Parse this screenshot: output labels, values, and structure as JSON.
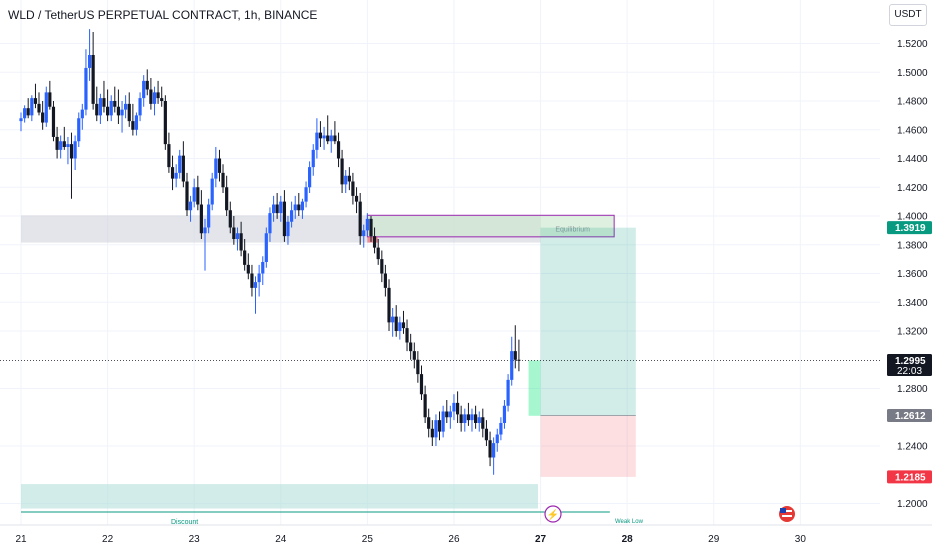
{
  "header": {
    "title": "WLD / TetherUS PERPETUAL CONTRACT, 1h, BINANCE",
    "currency": "USDT"
  },
  "chart_data": {
    "type": "candlestick",
    "title": "WLD / TetherUS PERPETUAL CONTRACT, 1h, BINANCE",
    "y_ticks": [
      "1.5200",
      "1.5000",
      "1.4800",
      "1.4600",
      "1.4400",
      "1.4200",
      "1.4000",
      "1.3800",
      "1.3600",
      "1.3400",
      "1.3200",
      "1.2800",
      "1.2400",
      "1.2000"
    ],
    "x_ticks": [
      "21",
      "22",
      "23",
      "24",
      "25",
      "26",
      "27",
      "28",
      "29",
      "30"
    ],
    "ylim": [
      1.193,
      1.534
    ],
    "xlim": [
      21.0,
      30.92
    ],
    "colors": {
      "up": "#2962ff",
      "down": "#131722"
    },
    "price_labels": [
      {
        "value": 1.3919,
        "text": "1.3919",
        "color": "#089981"
      },
      {
        "value": 1.2995,
        "text": "1.2995",
        "sub": "22:03",
        "color": "#131722"
      },
      {
        "value": 1.2612,
        "text": "1.2612",
        "color": "#787b86"
      },
      {
        "value": 1.2185,
        "text": "1.2185",
        "color": "#f23645"
      }
    ],
    "current_price": 1.2995,
    "zones": [
      {
        "name": "supply-zone",
        "x": [
          21.0,
          27.0
        ],
        "y": [
          1.3815,
          1.4005
        ],
        "color": "#d1d4dc",
        "opacity": 0.6
      },
      {
        "name": "equilibrium-box",
        "x": [
          25.0,
          27.85
        ],
        "y": [
          1.3855,
          1.4005
        ],
        "color": "#c8e6c9",
        "opacity": 0.6,
        "border": "#9c27b0",
        "label": "Equilibrium"
      },
      {
        "name": "small-red-zone",
        "x": [
          25.0,
          25.12
        ],
        "y": [
          1.3815,
          1.3855
        ],
        "color": "#f7525f",
        "opacity": 0.6
      },
      {
        "name": "discount-zone",
        "x": [
          21.0,
          26.97
        ],
        "y": [
          1.1965,
          1.2135
        ],
        "color": "#b2dfdb",
        "opacity": 0.6,
        "label": "Discount"
      }
    ],
    "position": {
      "x": [
        27.0,
        28.1
      ],
      "entry": 1.2612,
      "target": 1.3919,
      "stop": 1.2185,
      "profit_color": "#089981",
      "loss_color": "#f23645"
    },
    "weak_low": {
      "x": [
        21.0,
        27.8
      ],
      "y": 1.1975,
      "label": "Weak Low"
    },
    "candles": [
      [
        21.0,
        1.466,
        1.472,
        1.459,
        1.468
      ],
      [
        21.042,
        1.468,
        1.477,
        1.465,
        1.475
      ],
      [
        21.083,
        1.475,
        1.482,
        1.468,
        1.47
      ],
      [
        21.125,
        1.47,
        1.484,
        1.466,
        1.482
      ],
      [
        21.167,
        1.482,
        1.492,
        1.475,
        1.478
      ],
      [
        21.208,
        1.478,
        1.486,
        1.47,
        1.472
      ],
      [
        21.25,
        1.472,
        1.48,
        1.46,
        1.465
      ],
      [
        21.292,
        1.465,
        1.49,
        1.462,
        1.486
      ],
      [
        21.333,
        1.486,
        1.494,
        1.474,
        1.476
      ],
      [
        21.375,
        1.476,
        1.48,
        1.452,
        1.455
      ],
      [
        21.417,
        1.455,
        1.462,
        1.44,
        1.446
      ],
      [
        21.458,
        1.446,
        1.456,
        1.44,
        1.452
      ],
      [
        21.5,
        1.452,
        1.462,
        1.446,
        1.448
      ],
      [
        21.542,
        1.448,
        1.455,
        1.436,
        1.45
      ],
      [
        21.583,
        1.45,
        1.458,
        1.412,
        1.44
      ],
      [
        21.625,
        1.44,
        1.456,
        1.432,
        1.452
      ],
      [
        21.667,
        1.452,
        1.472,
        1.448,
        1.468
      ],
      [
        21.708,
        1.468,
        1.478,
        1.46,
        1.474
      ],
      [
        21.75,
        1.474,
        1.516,
        1.47,
        1.503
      ],
      [
        21.792,
        1.503,
        1.53,
        1.494,
        1.512
      ],
      [
        21.833,
        1.512,
        1.528,
        1.474,
        1.478
      ],
      [
        21.875,
        1.478,
        1.49,
        1.466,
        1.47
      ],
      [
        21.917,
        1.47,
        1.485,
        1.464,
        1.482
      ],
      [
        21.958,
        1.482,
        1.494,
        1.472,
        1.476
      ],
      [
        22.0,
        1.476,
        1.488,
        1.466,
        1.47
      ],
      [
        22.042,
        1.47,
        1.484,
        1.466,
        1.48
      ],
      [
        22.083,
        1.48,
        1.49,
        1.472,
        1.476
      ],
      [
        22.125,
        1.476,
        1.488,
        1.464,
        1.47
      ],
      [
        22.167,
        1.47,
        1.48,
        1.458,
        1.474
      ],
      [
        22.208,
        1.474,
        1.484,
        1.468,
        1.478
      ],
      [
        22.25,
        1.478,
        1.486,
        1.462,
        1.466
      ],
      [
        22.292,
        1.466,
        1.478,
        1.456,
        1.46
      ],
      [
        22.333,
        1.46,
        1.472,
        1.456,
        1.47
      ],
      [
        22.375,
        1.47,
        1.486,
        1.466,
        1.482
      ],
      [
        22.417,
        1.482,
        1.498,
        1.476,
        1.494
      ],
      [
        22.458,
        1.494,
        1.502,
        1.484,
        1.488
      ],
      [
        22.5,
        1.488,
        1.496,
        1.474,
        1.478
      ],
      [
        22.542,
        1.478,
        1.49,
        1.47,
        1.486
      ],
      [
        22.583,
        1.486,
        1.494,
        1.478,
        1.482
      ],
      [
        22.625,
        1.482,
        1.49,
        1.476,
        1.48
      ],
      [
        22.667,
        1.48,
        1.484,
        1.446,
        1.45
      ],
      [
        22.708,
        1.45,
        1.458,
        1.43,
        1.434
      ],
      [
        22.75,
        1.434,
        1.442,
        1.418,
        1.426
      ],
      [
        22.792,
        1.426,
        1.436,
        1.42,
        1.43
      ],
      [
        22.833,
        1.43,
        1.446,
        1.426,
        1.442
      ],
      [
        22.875,
        1.442,
        1.452,
        1.42,
        1.424
      ],
      [
        22.917,
        1.424,
        1.43,
        1.4,
        1.404
      ],
      [
        22.958,
        1.404,
        1.414,
        1.396,
        1.41
      ],
      [
        23.0,
        1.41,
        1.426,
        1.406,
        1.42
      ],
      [
        23.042,
        1.42,
        1.428,
        1.404,
        1.408
      ],
      [
        23.083,
        1.408,
        1.418,
        1.384,
        1.388
      ],
      [
        23.125,
        1.388,
        1.398,
        1.362,
        1.392
      ],
      [
        23.167,
        1.392,
        1.412,
        1.388,
        1.408
      ],
      [
        23.208,
        1.408,
        1.43,
        1.404,
        1.426
      ],
      [
        23.25,
        1.426,
        1.448,
        1.42,
        1.44
      ],
      [
        23.292,
        1.44,
        1.446,
        1.424,
        1.43
      ],
      [
        23.333,
        1.43,
        1.436,
        1.416,
        1.42
      ],
      [
        23.375,
        1.42,
        1.428,
        1.4,
        1.404
      ],
      [
        23.417,
        1.404,
        1.41,
        1.388,
        1.392
      ],
      [
        23.458,
        1.392,
        1.4,
        1.38,
        1.384
      ],
      [
        23.5,
        1.384,
        1.392,
        1.376,
        1.388
      ],
      [
        23.542,
        1.388,
        1.396,
        1.372,
        1.376
      ],
      [
        23.583,
        1.376,
        1.384,
        1.362,
        1.366
      ],
      [
        23.625,
        1.366,
        1.374,
        1.356,
        1.36
      ],
      [
        23.667,
        1.36,
        1.366,
        1.344,
        1.35
      ],
      [
        23.708,
        1.35,
        1.358,
        1.332,
        1.354
      ],
      [
        23.75,
        1.354,
        1.366,
        1.344,
        1.36
      ],
      [
        23.792,
        1.36,
        1.372,
        1.352,
        1.368
      ],
      [
        23.833,
        1.368,
        1.392,
        1.364,
        1.388
      ],
      [
        23.875,
        1.388,
        1.406,
        1.382,
        1.402
      ],
      [
        23.917,
        1.402,
        1.414,
        1.396,
        1.408
      ],
      [
        23.958,
        1.408,
        1.416,
        1.398,
        1.402
      ],
      [
        24.0,
        1.402,
        1.414,
        1.396,
        1.41
      ],
      [
        24.042,
        1.41,
        1.418,
        1.382,
        1.386
      ],
      [
        24.083,
        1.386,
        1.4,
        1.38,
        1.396
      ],
      [
        24.125,
        1.396,
        1.41,
        1.392,
        1.404
      ],
      [
        24.167,
        1.404,
        1.414,
        1.398,
        1.408
      ],
      [
        24.208,
        1.408,
        1.416,
        1.4,
        1.404
      ],
      [
        24.25,
        1.404,
        1.412,
        1.398,
        1.41
      ],
      [
        24.292,
        1.41,
        1.424,
        1.406,
        1.42
      ],
      [
        24.333,
        1.42,
        1.438,
        1.416,
        1.434
      ],
      [
        24.375,
        1.434,
        1.45,
        1.428,
        1.446
      ],
      [
        24.417,
        1.446,
        1.468,
        1.44,
        1.458
      ],
      [
        24.458,
        1.458,
        1.466,
        1.448,
        1.454
      ],
      [
        24.5,
        1.454,
        1.462,
        1.446,
        1.456
      ],
      [
        24.542,
        1.456,
        1.47,
        1.45,
        1.452
      ],
      [
        24.583,
        1.452,
        1.46,
        1.444,
        1.456
      ],
      [
        24.625,
        1.456,
        1.466,
        1.45,
        1.452
      ],
      [
        24.667,
        1.452,
        1.458,
        1.434,
        1.44
      ],
      [
        24.708,
        1.44,
        1.446,
        1.416,
        1.422
      ],
      [
        24.75,
        1.422,
        1.432,
        1.416,
        1.428
      ],
      [
        24.792,
        1.428,
        1.434,
        1.418,
        1.424
      ],
      [
        24.833,
        1.424,
        1.43,
        1.408,
        1.414
      ],
      [
        24.875,
        1.414,
        1.42,
        1.402,
        1.41
      ],
      [
        24.917,
        1.41,
        1.416,
        1.38,
        1.386
      ],
      [
        24.958,
        1.386,
        1.394,
        1.378,
        1.39
      ],
      [
        25.0,
        1.39,
        1.402,
        1.386,
        1.398
      ],
      [
        25.042,
        1.398,
        1.4,
        1.382,
        1.386
      ],
      [
        25.083,
        1.386,
        1.392,
        1.374,
        1.378
      ],
      [
        25.125,
        1.378,
        1.384,
        1.366,
        1.37
      ],
      [
        25.167,
        1.37,
        1.376,
        1.354,
        1.36
      ],
      [
        25.208,
        1.36,
        1.366,
        1.344,
        1.35
      ],
      [
        25.25,
        1.35,
        1.356,
        1.32,
        1.326
      ],
      [
        25.292,
        1.326,
        1.336,
        1.316,
        1.33
      ],
      [
        25.333,
        1.33,
        1.338,
        1.316,
        1.32
      ],
      [
        25.375,
        1.32,
        1.33,
        1.314,
        1.326
      ],
      [
        25.417,
        1.326,
        1.334,
        1.318,
        1.322
      ],
      [
        25.458,
        1.322,
        1.328,
        1.306,
        1.312
      ],
      [
        25.5,
        1.312,
        1.318,
        1.3,
        1.306
      ],
      [
        25.542,
        1.306,
        1.312,
        1.294,
        1.3
      ],
      [
        25.583,
        1.3,
        1.306,
        1.284,
        1.29
      ],
      [
        25.625,
        1.29,
        1.296,
        1.272,
        1.276
      ],
      [
        25.667,
        1.276,
        1.282,
        1.256,
        1.26
      ],
      [
        25.708,
        1.26,
        1.266,
        1.246,
        1.252
      ],
      [
        25.75,
        1.252,
        1.258,
        1.24,
        1.246
      ],
      [
        25.792,
        1.246,
        1.262,
        1.24,
        1.258
      ],
      [
        25.833,
        1.258,
        1.264,
        1.244,
        1.25
      ],
      [
        25.875,
        1.25,
        1.268,
        1.246,
        1.264
      ],
      [
        25.917,
        1.264,
        1.272,
        1.256,
        1.26
      ],
      [
        25.958,
        1.26,
        1.268,
        1.252,
        1.264
      ],
      [
        26.0,
        1.264,
        1.276,
        1.258,
        1.27
      ],
      [
        26.042,
        1.27,
        1.278,
        1.256,
        1.262
      ],
      [
        26.083,
        1.262,
        1.268,
        1.25,
        1.256
      ],
      [
        26.125,
        1.256,
        1.266,
        1.25,
        1.262
      ],
      [
        26.167,
        1.262,
        1.27,
        1.254,
        1.258
      ],
      [
        26.208,
        1.258,
        1.266,
        1.25,
        1.262
      ],
      [
        26.25,
        1.262,
        1.268,
        1.252,
        1.256
      ],
      [
        26.292,
        1.256,
        1.264,
        1.25,
        1.26
      ],
      [
        26.333,
        1.26,
        1.266,
        1.246,
        1.252
      ],
      [
        26.375,
        1.252,
        1.258,
        1.24,
        1.244
      ],
      [
        26.417,
        1.244,
        1.25,
        1.226,
        1.232
      ],
      [
        26.458,
        1.232,
        1.246,
        1.22,
        1.242
      ],
      [
        26.5,
        1.242,
        1.252,
        1.236,
        1.248
      ],
      [
        26.542,
        1.248,
        1.26,
        1.244,
        1.256
      ],
      [
        26.583,
        1.256,
        1.272,
        1.252,
        1.268
      ],
      [
        26.625,
        1.268,
        1.29,
        1.264,
        1.286
      ],
      [
        26.667,
        1.286,
        1.316,
        1.282,
        1.306
      ],
      [
        26.708,
        1.306,
        1.324,
        1.294,
        1.3
      ],
      [
        26.75,
        1.3,
        1.314,
        1.292,
        1.2995
      ]
    ]
  }
}
